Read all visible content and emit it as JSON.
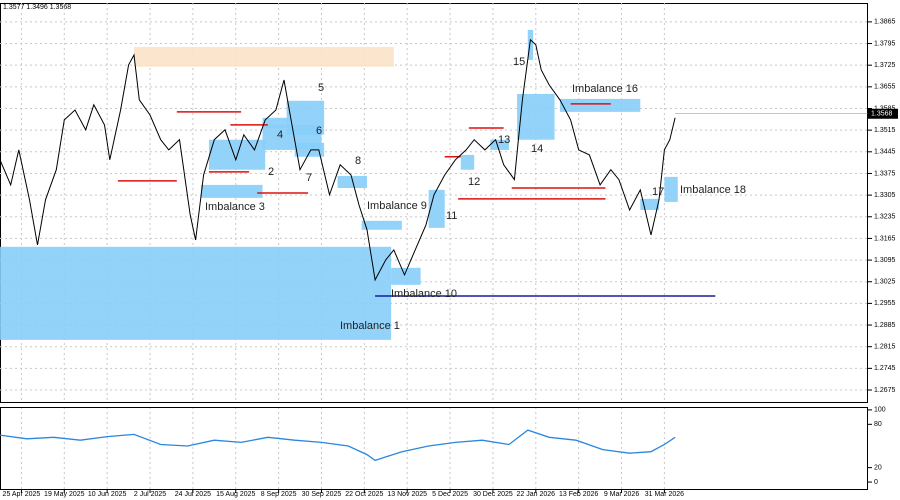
{
  "chart_data": [
    {
      "type": "line",
      "title": "1.3577 1.3496 1.3568",
      "color": "#000000",
      "xlim": [
        0,
        324
      ],
      "ylim": [
        1.2633,
        1.3926
      ],
      "grid": true,
      "xticks": [
        {
          "value": 8,
          "label": "25 Apr 2025"
        },
        {
          "value": 24,
          "label": "19 May 2025"
        },
        {
          "value": 40,
          "label": "10 Jun 2025"
        },
        {
          "value": 56,
          "label": "2 Jul 2025"
        },
        {
          "value": 72,
          "label": "24 Jul 2025"
        },
        {
          "value": 88,
          "label": "15 Aug 2025"
        },
        {
          "value": 104,
          "label": "8 Sep 2025"
        },
        {
          "value": 120,
          "label": "30 Sep 2025"
        },
        {
          "value": 136,
          "label": "22 Oct 2025"
        },
        {
          "value": 152,
          "label": "13 Nov 2025"
        },
        {
          "value": 168,
          "label": "5 Dec 2025"
        },
        {
          "value": 184,
          "label": "30 Dec 2025"
        },
        {
          "value": 200,
          "label": "22 Jan 2026"
        },
        {
          "value": 216,
          "label": "13 Feb 2026"
        },
        {
          "value": 232,
          "label": "9 Mar 2026"
        },
        {
          "value": 248,
          "label": "31 Mar 2026"
        }
      ],
      "yticks": [
        1.3865,
        1.3795,
        1.3725,
        1.3655,
        1.3585,
        1.3515,
        1.3445,
        1.3375,
        1.3305,
        1.3235,
        1.3165,
        1.3095,
        1.3025,
        1.2955,
        1.2885,
        1.2815,
        1.2745,
        1.2675
      ],
      "last_price": 1.3568,
      "x": [
        0,
        4,
        7,
        11,
        14,
        17,
        21,
        24,
        28,
        32,
        35,
        39,
        41,
        45,
        48,
        50,
        52,
        56,
        60,
        63,
        67,
        71,
        73,
        76,
        80,
        84,
        88,
        91,
        95,
        99,
        103,
        106,
        108,
        112,
        116,
        119,
        123,
        127,
        131,
        134,
        137,
        140,
        144,
        147,
        151,
        155,
        159,
        162,
        166,
        170,
        174,
        177,
        181,
        185,
        188,
        192,
        195,
        198,
        200,
        202,
        205,
        209,
        213,
        216,
        220,
        224,
        228,
        231,
        235,
        239,
        243,
        246,
        248,
        250,
        252
      ],
      "values": [
        1.3419,
        1.3338,
        1.3451,
        1.329,
        1.3144,
        1.329,
        1.3387,
        1.3548,
        1.358,
        1.3516,
        1.3597,
        1.3532,
        1.3419,
        1.358,
        1.3726,
        1.3758,
        1.3613,
        1.3564,
        1.3484,
        1.3451,
        1.3484,
        1.3241,
        1.316,
        1.337,
        1.3484,
        1.3516,
        1.3419,
        1.35,
        1.3451,
        1.3548,
        1.358,
        1.3677,
        1.358,
        1.3387,
        1.3451,
        1.3451,
        1.3306,
        1.3403,
        1.337,
        1.3273,
        1.3193,
        1.3031,
        1.3096,
        1.3128,
        1.3047,
        1.3128,
        1.3209,
        1.3306,
        1.337,
        1.3419,
        1.3451,
        1.3484,
        1.3451,
        1.3484,
        1.3403,
        1.3355,
        1.3613,
        1.3807,
        1.3791,
        1.371,
        1.3661,
        1.3613,
        1.3548,
        1.3451,
        1.3435,
        1.3338,
        1.3387,
        1.3355,
        1.3257,
        1.3322,
        1.3176,
        1.329,
        1.3451,
        1.3484,
        1.3555
      ],
      "zones": [
        {
          "label": "Imbalance 1",
          "x": [
            0,
            146
          ],
          "top": 1.3138,
          "bottom": 1.2837,
          "color": "#87cefa"
        },
        {
          "label": "2",
          "x": [
            78,
            99
          ],
          "top": 1.3484,
          "bottom": 1.3387,
          "color": "#87cefa"
        },
        {
          "label": "Imbalance 3",
          "x": [
            75,
            98
          ],
          "top": 1.3338,
          "bottom": 1.3296,
          "color": "#87cefa"
        },
        {
          "label": "4",
          "x": [
            98,
            108
          ],
          "top": 1.3555,
          "bottom": 1.3522,
          "color": "#87cefa"
        },
        {
          "label": "5",
          "x": [
            107,
            121
          ],
          "top": 1.361,
          "bottom": 1.35,
          "color": "#87cefa"
        },
        {
          "label": "6",
          "x": [
            98,
            120
          ],
          "top": 1.3532,
          "bottom": 1.3451,
          "color": "#87cefa"
        },
        {
          "label": "7",
          "x": [
            110,
            121
          ],
          "top": 1.3474,
          "bottom": 1.3429,
          "color": "#87cefa"
        },
        {
          "label": "8",
          "x": [
            126,
            137
          ],
          "top": 1.3367,
          "bottom": 1.3328,
          "color": "#87cefa"
        },
        {
          "label": "Imbalance 9",
          "x": [
            135,
            150
          ],
          "top": 1.3222,
          "bottom": 1.3193,
          "color": "#87cefa"
        },
        {
          "label": "Imbalance 10",
          "x": [
            146,
            157
          ],
          "top": 1.307,
          "bottom": 1.3015,
          "color": "#87cefa"
        },
        {
          "label": "11",
          "x": [
            160,
            166
          ],
          "top": 1.3322,
          "bottom": 1.3199,
          "color": "#87cefa"
        },
        {
          "label": "12",
          "x": [
            172,
            177
          ],
          "top": 1.3435,
          "bottom": 1.3387,
          "color": "#87cefa"
        },
        {
          "label": "13",
          "x": [
            183,
            190
          ],
          "top": 1.3484,
          "bottom": 1.3451,
          "color": "#87cefa"
        },
        {
          "label": "14",
          "x": [
            193,
            207
          ],
          "top": 1.3632,
          "bottom": 1.3484,
          "color": "#87cefa"
        },
        {
          "label": "15",
          "x": [
            197,
            199
          ],
          "top": 1.3839,
          "bottom": 1.3742,
          "color": "#87cefa"
        },
        {
          "label": "Imbalance 16",
          "x": [
            209,
            239
          ],
          "top": 1.3616,
          "bottom": 1.3574,
          "color": "#87cefa"
        },
        {
          "label": "17",
          "x": [
            239,
            246
          ],
          "top": 1.3293,
          "bottom": 1.3257,
          "color": "#87cefa"
        },
        {
          "label": "Imbalance 18",
          "x": [
            248,
            253
          ],
          "top": 1.3364,
          "bottom": 1.3283,
          "color": "#87cefa"
        },
        {
          "x": [
            50,
            147
          ],
          "top": 1.3784,
          "bottom": 1.372,
          "color": "#fbe3c8"
        }
      ],
      "levels": [
        {
          "x": [
            66,
            90
          ],
          "price": 1.3574,
          "color": "#dd1111"
        },
        {
          "x": [
            86,
            100
          ],
          "price": 1.3532,
          "color": "#dd1111"
        },
        {
          "x": [
            44,
            66
          ],
          "price": 1.3351,
          "color": "#dd1111"
        },
        {
          "x": [
            78,
            93
          ],
          "price": 1.338,
          "color": "#dd1111"
        },
        {
          "x": [
            96,
            115
          ],
          "price": 1.3312,
          "color": "#dd1111"
        },
        {
          "x": [
            166,
            172
          ],
          "price": 1.3429,
          "color": "#dd1111"
        },
        {
          "x": [
            175,
            188
          ],
          "price": 1.3522,
          "color": "#dd1111"
        },
        {
          "x": [
            191,
            226
          ],
          "price": 1.3328,
          "color": "#dd1111"
        },
        {
          "x": [
            171,
            226
          ],
          "price": 1.3293,
          "color": "#dd1111"
        },
        {
          "x": [
            213,
            228
          ],
          "price": 1.36,
          "color": "#dd1111"
        },
        {
          "x": [
            140,
            267
          ],
          "price": 1.2979,
          "color": "#1a1aa0"
        }
      ]
    },
    {
      "type": "line",
      "color": "#2a86e0",
      "xlim": [
        0,
        324
      ],
      "ylim": [
        -11,
        104
      ],
      "yticks": [
        100,
        80,
        20,
        0
      ],
      "x": [
        0,
        10,
        20,
        30,
        40,
        50,
        60,
        70,
        80,
        90,
        100,
        110,
        120,
        130,
        137,
        140,
        150,
        160,
        170,
        180,
        190,
        197,
        205,
        215,
        225,
        235,
        243,
        248,
        252
      ],
      "values": [
        65,
        60,
        62,
        58,
        63,
        66,
        52,
        50,
        58,
        55,
        62,
        58,
        55,
        50,
        38,
        30,
        42,
        50,
        55,
        58,
        52,
        72,
        62,
        58,
        45,
        40,
        42,
        52,
        62
      ]
    }
  ]
}
